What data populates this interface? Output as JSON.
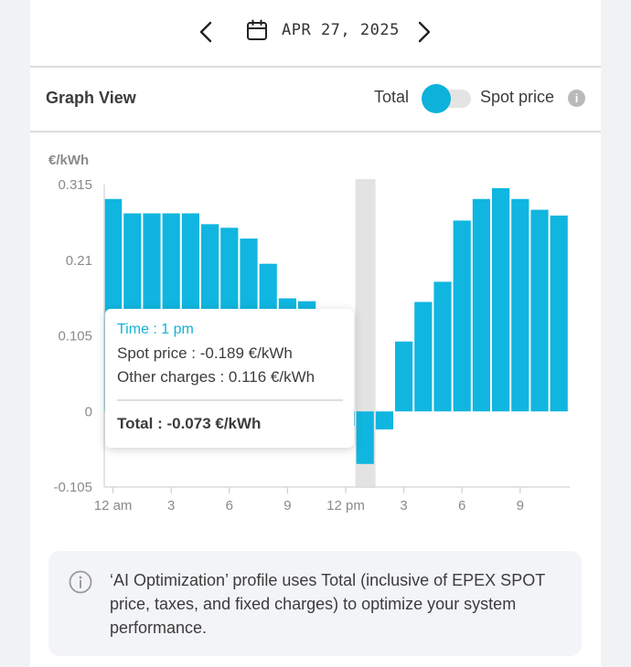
{
  "date_nav": {
    "date": "APR 27, 2025",
    "prev_icon": "chevron-left-icon",
    "next_icon": "chevron-right-icon",
    "calendar_icon": "calendar-icon"
  },
  "graph_header": {
    "title": "Graph View",
    "toggle_left_label": "Total",
    "toggle_right_label": "Spot price",
    "info_icon": "info-icon",
    "toggle_selected": "Total"
  },
  "tooltip": {
    "time": "Time : 1 pm",
    "spot": "Spot price : -0.189 €/kWh",
    "other": "Other charges : 0.116 €/kWh",
    "total": "Total : -0.073 €/kWh"
  },
  "notice": {
    "icon": "info-outline-icon",
    "text": "‘AI Optimization’ profile uses Total (inclusive of EPEX SPOT price, taxes, and fixed charges) to optimize your system performance."
  },
  "colors": {
    "bar": "#10b6df",
    "accent": "#0cb2da",
    "highlight_band": "#e3e3e3"
  },
  "chart_data": {
    "type": "bar",
    "ylabel": "€/kWh",
    "ylim": [
      -0.105,
      0.315
    ],
    "yticks": [
      "0.315",
      "0.21",
      "0.105",
      "0",
      "-0.105"
    ],
    "xticks": [
      {
        "hour": 0,
        "label": "12 am"
      },
      {
        "hour": 3,
        "label": "3"
      },
      {
        "hour": 6,
        "label": "6"
      },
      {
        "hour": 9,
        "label": "9"
      },
      {
        "hour": 12,
        "label": "12 pm"
      },
      {
        "hour": 15,
        "label": "3"
      },
      {
        "hour": 18,
        "label": "6"
      },
      {
        "hour": 21,
        "label": "9"
      }
    ],
    "hours": [
      0,
      1,
      2,
      3,
      4,
      5,
      6,
      7,
      8,
      9,
      10,
      11,
      12,
      13,
      14,
      15,
      16,
      17,
      18,
      19,
      20,
      21,
      22,
      23
    ],
    "values": [
      0.295,
      0.275,
      0.275,
      0.275,
      0.275,
      0.26,
      0.255,
      0.24,
      0.205,
      0.157,
      0.153,
      0.05,
      -0.02,
      -0.073,
      -0.025,
      0.097,
      0.152,
      0.18,
      0.265,
      0.295,
      0.31,
      0.295,
      0.28,
      0.272
    ],
    "highlight_hour": 13,
    "grid": false,
    "legend": "none"
  }
}
